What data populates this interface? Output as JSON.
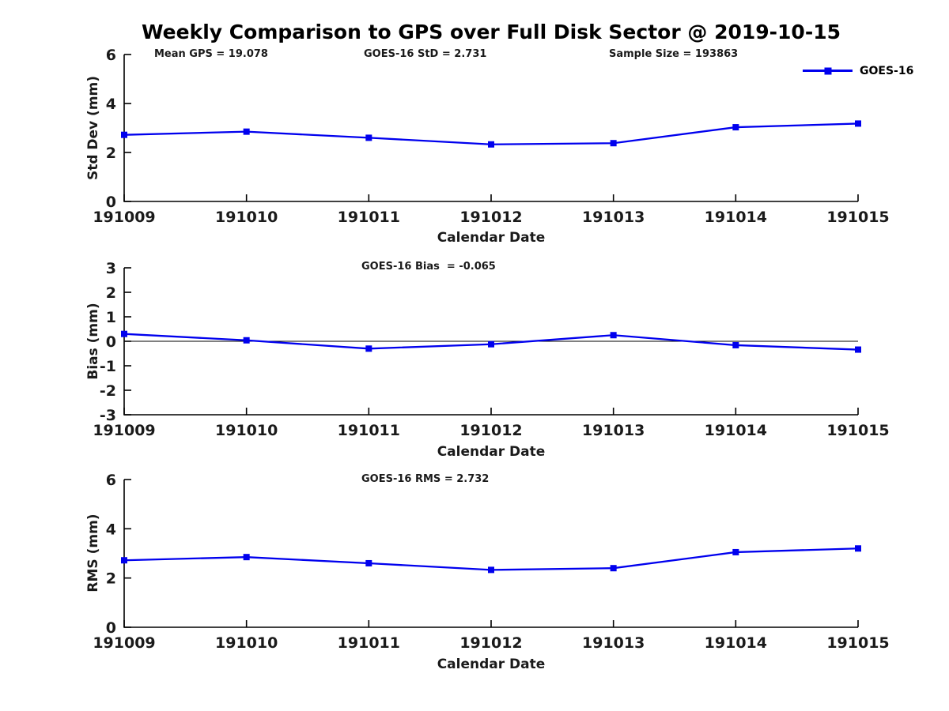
{
  "figure": {
    "title": "Weekly Comparison to GPS over Full Disk Sector @ 2019-10-15",
    "legend": {
      "label": "GOES-16",
      "series_color": "#0000EE",
      "position": "top-right"
    }
  },
  "chart_data": [
    {
      "type": "line",
      "panel": "std-dev",
      "annotations": [
        "Mean GPS = 19.078",
        "GOES-16 StD = 2.731",
        "Sample Size = 193863"
      ],
      "categories": [
        "191009",
        "191010",
        "191011",
        "191012",
        "191013",
        "191014",
        "191015"
      ],
      "series": [
        {
          "name": "GOES-16",
          "color": "#0000EE",
          "marker": "square",
          "values": [
            2.72,
            2.85,
            2.6,
            2.33,
            2.38,
            3.03,
            3.18
          ]
        }
      ],
      "xlabel": "Calendar Date",
      "ylabel": "Std Dev (mm)",
      "ylim": [
        0,
        6
      ],
      "yticks": [
        0,
        2,
        4,
        6
      ],
      "grid": false,
      "zero_line": false,
      "box": false
    },
    {
      "type": "line",
      "panel": "bias",
      "annotations": [
        "GOES-16 Bias  = -0.065"
      ],
      "categories": [
        "191009",
        "191010",
        "191011",
        "191012",
        "191013",
        "191014",
        "191015"
      ],
      "series": [
        {
          "name": "GOES-16",
          "color": "#0000EE",
          "marker": "square",
          "values": [
            0.3,
            0.04,
            -0.3,
            -0.12,
            0.25,
            -0.16,
            -0.34
          ]
        }
      ],
      "xlabel": "Calendar Date",
      "ylabel": "Bias (mm)",
      "ylim": [
        -3,
        3
      ],
      "yticks": [
        -3,
        -2,
        -1,
        0,
        1,
        2,
        3
      ],
      "grid": false,
      "zero_line": true,
      "box": false
    },
    {
      "type": "line",
      "panel": "rms",
      "annotations": [
        "GOES-16 RMS = 2.732"
      ],
      "categories": [
        "191009",
        "191010",
        "191011",
        "191012",
        "191013",
        "191014",
        "191015"
      ],
      "series": [
        {
          "name": "GOES-16",
          "color": "#0000EE",
          "marker": "square",
          "values": [
            2.72,
            2.85,
            2.6,
            2.33,
            2.4,
            3.05,
            3.2
          ]
        }
      ],
      "xlabel": "Calendar Date",
      "ylabel": "RMS (mm)",
      "ylim": [
        0,
        6
      ],
      "yticks": [
        0,
        2,
        4,
        6
      ],
      "grid": false,
      "zero_line": false,
      "box": false
    }
  ]
}
